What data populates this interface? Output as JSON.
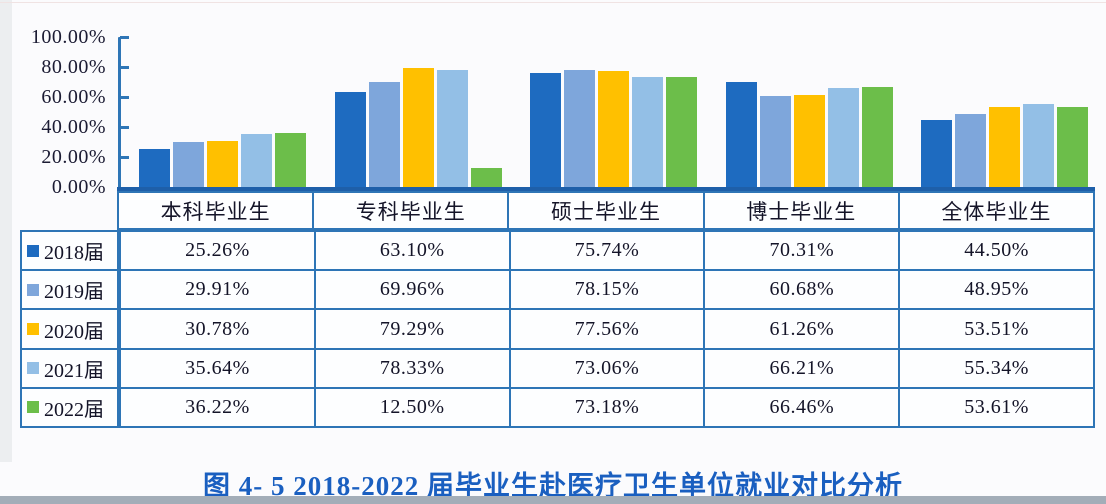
{
  "caption": "图 4- 5  2018-2022 届毕业生赴医疗卫生单位就业对比分析",
  "colors": {
    "table_border": "#2E75B6",
    "axis": "#2E75B6",
    "baseline": "#1E5FA9",
    "caption_text": "#1A5FC0",
    "tick_text": "#1B1B33"
  },
  "chart_data": {
    "type": "bar",
    "title": "",
    "xlabel": "",
    "ylabel": "",
    "categories": [
      "本科毕业生",
      "专科毕业生",
      "硕士毕业生",
      "博士毕业生",
      "全体毕业生"
    ],
    "series": [
      {
        "name": "2018届",
        "color": "#1E6BC0",
        "values": [
          25.26,
          63.1,
          75.74,
          70.31,
          44.5
        ]
      },
      {
        "name": "2019届",
        "color": "#7EA6DB",
        "values": [
          29.91,
          69.96,
          78.15,
          60.68,
          48.95
        ]
      },
      {
        "name": "2020届",
        "color": "#FFC000",
        "values": [
          30.78,
          79.29,
          77.56,
          61.26,
          53.51
        ]
      },
      {
        "name": "2021届",
        "color": "#93BFE6",
        "values": [
          35.64,
          78.33,
          73.06,
          66.21,
          55.34
        ]
      },
      {
        "name": "2022届",
        "color": "#6CBE4A",
        "values": [
          36.22,
          12.5,
          73.18,
          66.46,
          53.61
        ]
      }
    ],
    "ylim": [
      0,
      100
    ],
    "y_ticks": [
      "100.00%",
      "80.00%",
      "60.00%",
      "40.00%",
      "20.00%",
      "0.00%"
    ],
    "grid": false,
    "legend_position": "table-row-labels"
  },
  "table": {
    "columns": [
      "本科毕业生",
      "专科毕业生",
      "硕士毕业生",
      "博士毕业生",
      "全体毕业生"
    ],
    "rows": [
      {
        "label": "2018届",
        "values": [
          "25.26%",
          "63.10%",
          "75.74%",
          "70.31%",
          "44.50%"
        ]
      },
      {
        "label": "2019届",
        "values": [
          "29.91%",
          "69.96%",
          "78.15%",
          "60.68%",
          "48.95%"
        ]
      },
      {
        "label": "2020届",
        "values": [
          "30.78%",
          "79.29%",
          "77.56%",
          "61.26%",
          "53.51%"
        ]
      },
      {
        "label": "2021届",
        "values": [
          "35.64%",
          "78.33%",
          "73.06%",
          "66.21%",
          "55.34%"
        ]
      },
      {
        "label": "2022届",
        "values": [
          "36.22%",
          "12.50%",
          "73.18%",
          "66.46%",
          "53.61%"
        ]
      }
    ]
  }
}
